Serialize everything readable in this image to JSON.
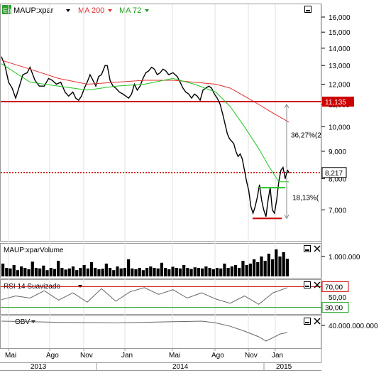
{
  "header": {
    "symbol_badge": "Eq",
    "symbol": "MAUP:xpar",
    "ma200": "MA 200",
    "ma72": "MA 72"
  },
  "colors": {
    "price": "#000000",
    "ma200": "#e03030",
    "ma72": "#1ec81e",
    "level": "#cc0000",
    "annotation": "#888888",
    "volume": "#000000",
    "label_red": "#cc0000",
    "label_green": "#1a9e1a"
  },
  "chart_data": [
    {
      "type": "line",
      "panel": "price",
      "y_scale": "log",
      "ylim": [
        6.3,
        16.8
      ],
      "y_ticks": [
        "16,000",
        "15,000",
        "14,000",
        "13,000",
        "12,000",
        "11,000",
        "10,000",
        "9,000",
        "8,000",
        "7,000"
      ],
      "y_tick_values": [
        16,
        15,
        14,
        13,
        12,
        11,
        10,
        9,
        8,
        7
      ],
      "x_tick_labels": [
        "Mai",
        "Ago",
        "Nov",
        "Jan",
        "Mai",
        "Ago",
        "Nov",
        "Jan"
      ],
      "x_year_labels": [
        "2013",
        "2014",
        "2015"
      ],
      "levels": [
        {
          "value": 11.135,
          "label": "11,135",
          "style": "solid"
        },
        {
          "value": 8.217,
          "label": "8,217",
          "style": "dotted"
        }
      ],
      "annotations": [
        "36,27%(2",
        "18,13%("
      ],
      "series": [
        {
          "name": "MAUP:xpar",
          "x": [
            0,
            5,
            10,
            15,
            20,
            26,
            30,
            36,
            40,
            47,
            53,
            60,
            66,
            71,
            77,
            83,
            89,
            94,
            100,
            104,
            108,
            112,
            116,
            120,
            124,
            128,
            132,
            136,
            140,
            145,
            148,
            150,
            152,
            156,
            160,
            165,
            170,
            174,
            178,
            182,
            186,
            190,
            194,
            198,
            202,
            206,
            210,
            214,
            218,
            222,
            226,
            230,
            234,
            240,
            246,
            250,
            254,
            258,
            262,
            266,
            270,
            274,
            278,
            282,
            286,
            290,
            294,
            298,
            302,
            306,
            310,
            313,
            316,
            319,
            322,
            325,
            328,
            331,
            334,
            337,
            340,
            343,
            346,
            349,
            352,
            355,
            358,
            361,
            364,
            367,
            370,
            373,
            376,
            379,
            382,
            385,
            388,
            391,
            394,
            397,
            400,
            403
          ],
          "y": [
            13.5,
            13.0,
            12.1,
            11.8,
            11.3,
            12.0,
            12.5,
            12.6,
            12.9,
            12.2,
            11.9,
            11.9,
            12.3,
            12.2,
            12.0,
            12.1,
            11.6,
            11.4,
            11.6,
            11.3,
            11.2,
            11.4,
            11.8,
            12.1,
            12.5,
            12.2,
            11.9,
            12.4,
            12.5,
            13.0,
            13.0,
            12.6,
            12.2,
            11.9,
            11.8,
            11.6,
            11.5,
            11.4,
            11.3,
            11.5,
            12.0,
            11.7,
            11.9,
            12.3,
            12.6,
            12.7,
            12.9,
            12.8,
            12.5,
            12.6,
            12.8,
            12.7,
            12.5,
            12.6,
            12.4,
            12.1,
            11.8,
            11.6,
            11.5,
            11.3,
            11.5,
            11.4,
            11.2,
            11.7,
            11.8,
            11.9,
            11.8,
            11.5,
            11.3,
            11.0,
            10.5,
            10.1,
            9.7,
            9.5,
            9.4,
            9.3,
            9.0,
            8.8,
            8.9,
            8.7,
            8.3,
            7.9,
            7.6,
            7.1,
            6.9,
            7.1,
            7.4,
            7.8,
            7.3,
            7.0,
            6.8,
            7.3,
            7.7,
            7.0,
            6.9,
            7.3,
            7.9,
            8.3,
            8.4,
            8.0,
            8.3,
            8.2
          ]
        },
        {
          "name": "MA 200",
          "x": [
            0,
            40,
            80,
            120,
            160,
            200,
            240,
            270,
            300,
            320,
            340,
            360,
            380,
            402
          ],
          "y": [
            13.3,
            12.8,
            12.3,
            12.0,
            12.1,
            12.2,
            12.2,
            12.1,
            12.0,
            11.8,
            11.4,
            11.0,
            10.6,
            10.2
          ]
        },
        {
          "name": "MA 72",
          "x": [
            0,
            40,
            80,
            120,
            160,
            200,
            240,
            270,
            300,
            320,
            340,
            360,
            375,
            388,
            402
          ],
          "y": [
            13.1,
            12.1,
            11.9,
            11.7,
            11.9,
            12.0,
            12.3,
            12.0,
            11.6,
            10.9,
            10.0,
            9.1,
            8.4,
            7.9,
            7.9
          ]
        }
      ]
    },
    {
      "type": "bar",
      "panel": "volume",
      "title": "MAUP:xparVolume",
      "y_ticks": [
        "1.000.000"
      ],
      "values": [
        0.45,
        0.3,
        0.28,
        0.4,
        0.22,
        0.35,
        0.3,
        0.25,
        0.52,
        0.3,
        0.28,
        0.38,
        0.22,
        0.3,
        0.26,
        0.55,
        0.3,
        0.24,
        0.28,
        0.35,
        0.22,
        0.3,
        0.4,
        0.28,
        0.5,
        0.3,
        0.25,
        0.27,
        0.45,
        0.3,
        0.22,
        0.35,
        0.28,
        0.3,
        0.6,
        0.28,
        0.25,
        0.3,
        0.22,
        0.3,
        0.35,
        0.3,
        0.28,
        0.48,
        0.3,
        0.25,
        0.34,
        0.3,
        0.28,
        0.4,
        0.3,
        0.26,
        0.32,
        0.3,
        0.28,
        0.35,
        0.3,
        0.25,
        0.3,
        0.28,
        0.45,
        0.3,
        0.35,
        0.4,
        0.3,
        0.55,
        0.4,
        0.45,
        0.6,
        0.5,
        0.7,
        0.55,
        0.8,
        0.6,
        0.95,
        0.7,
        0.85,
        0.62
      ]
    },
    {
      "type": "line",
      "panel": "rsi",
      "title": "RSI 14 Suavizado",
      "ylim": [
        20,
        80
      ],
      "levels": [
        {
          "value": 70,
          "label": "70,00"
        },
        {
          "value": 30,
          "label": "30,00"
        }
      ],
      "y_ticks": [
        "50,00"
      ],
      "series": [
        {
          "name": "RSI 14 Suavizado",
          "x": [
            0,
            20,
            40,
            60,
            80,
            100,
            120,
            140,
            160,
            180,
            200,
            220,
            240,
            260,
            280,
            300,
            320,
            340,
            360,
            380,
            400
          ],
          "y": [
            45,
            52,
            48,
            62,
            44,
            58,
            40,
            66,
            42,
            60,
            68,
            55,
            64,
            48,
            58,
            46,
            38,
            52,
            36,
            58,
            68
          ]
        }
      ]
    },
    {
      "type": "line",
      "panel": "obv",
      "title": "OBV",
      "y_ticks": [
        "40.000.000.000"
      ],
      "series": [
        {
          "name": "OBV",
          "x": [
            0,
            40,
            80,
            120,
            160,
            200,
            240,
            280,
            300,
            320,
            340,
            360,
            370,
            380,
            390,
            400
          ],
          "y": [
            0.9,
            0.88,
            0.86,
            0.85,
            0.84,
            0.86,
            0.88,
            0.9,
            0.84,
            0.72,
            0.55,
            0.35,
            0.2,
            0.32,
            0.45,
            0.5
          ]
        }
      ]
    }
  ]
}
